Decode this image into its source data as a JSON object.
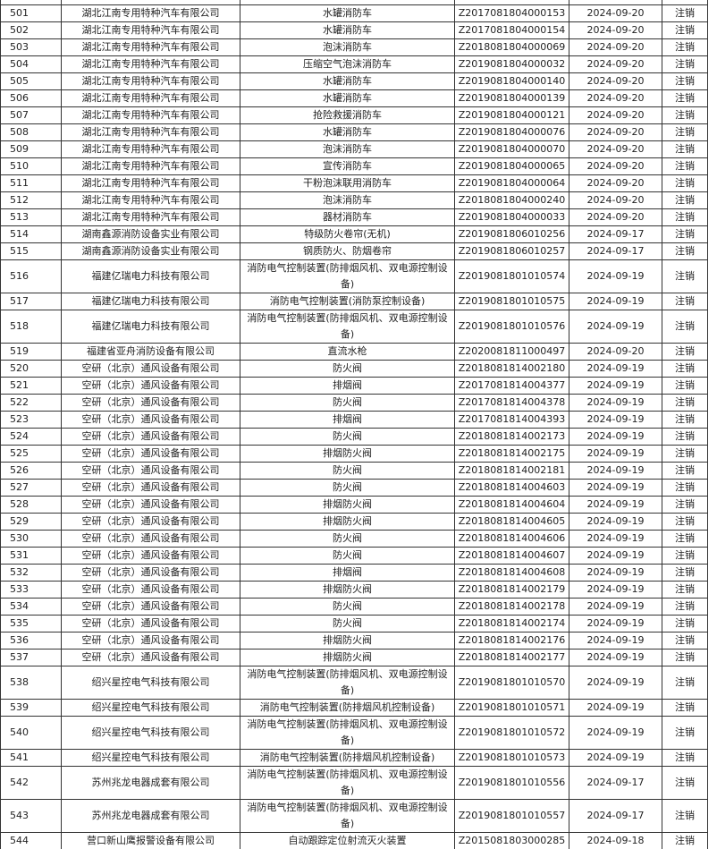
{
  "table": {
    "rows": [
      [
        "501",
        "湖北江南专用特种汽车有限公司",
        "水罐消防车",
        "Z2017081804000153",
        "2024-09-20",
        "注销"
      ],
      [
        "502",
        "湖北江南专用特种汽车有限公司",
        "水罐消防车",
        "Z2017081804000154",
        "2024-09-20",
        "注销"
      ],
      [
        "503",
        "湖北江南专用特种汽车有限公司",
        "泡沫消防车",
        "Z2018081804000069",
        "2024-09-20",
        "注销"
      ],
      [
        "504",
        "湖北江南专用特种汽车有限公司",
        "压缩空气泡沫消防车",
        "Z2019081804000032",
        "2024-09-20",
        "注销"
      ],
      [
        "505",
        "湖北江南专用特种汽车有限公司",
        "水罐消防车",
        "Z2019081804000140",
        "2024-09-20",
        "注销"
      ],
      [
        "506",
        "湖北江南专用特种汽车有限公司",
        "水罐消防车",
        "Z2019081804000139",
        "2024-09-20",
        "注销"
      ],
      [
        "507",
        "湖北江南专用特种汽车有限公司",
        "抢险救援消防车",
        "Z2019081804000121",
        "2024-09-20",
        "注销"
      ],
      [
        "508",
        "湖北江南专用特种汽车有限公司",
        "水罐消防车",
        "Z2019081804000076",
        "2024-09-20",
        "注销"
      ],
      [
        "509",
        "湖北江南专用特种汽车有限公司",
        "泡沫消防车",
        "Z2019081804000070",
        "2024-09-20",
        "注销"
      ],
      [
        "510",
        "湖北江南专用特种汽车有限公司",
        "宣传消防车",
        "Z2019081804000065",
        "2024-09-20",
        "注销"
      ],
      [
        "511",
        "湖北江南专用特种汽车有限公司",
        "干粉泡沫联用消防车",
        "Z2019081804000064",
        "2024-09-20",
        "注销"
      ],
      [
        "512",
        "湖北江南专用特种汽车有限公司",
        "泡沫消防车",
        "Z2018081804000240",
        "2024-09-20",
        "注销"
      ],
      [
        "513",
        "湖北江南专用特种汽车有限公司",
        "器材消防车",
        "Z2019081804000033",
        "2024-09-20",
        "注销"
      ],
      [
        "514",
        "湖南鑫源消防设备实业有限公司",
        "特级防火卷帘(无机)",
        "Z2019081806010256",
        "2024-09-17",
        "注销"
      ],
      [
        "515",
        "湖南鑫源消防设备实业有限公司",
        "钢质防火、防烟卷帘",
        "Z2019081806010257",
        "2024-09-17",
        "注销"
      ],
      [
        "516",
        "福建亿瑞电力科技有限公司",
        "消防电气控制装置(防排烟风机、双电源控制设备)",
        "Z2019081801010574",
        "2024-09-19",
        "注销"
      ],
      [
        "517",
        "福建亿瑞电力科技有限公司",
        "消防电气控制装置(消防泵控制设备)",
        "Z2019081801010575",
        "2024-09-19",
        "注销"
      ],
      [
        "518",
        "福建亿瑞电力科技有限公司",
        "消防电气控制装置(防排烟风机、双电源控制设备)",
        "Z2019081801010576",
        "2024-09-19",
        "注销"
      ],
      [
        "519",
        "福建省亚舟消防设备有限公司",
        "直流水枪",
        "Z2020081811000497",
        "2024-09-20",
        "注销"
      ],
      [
        "520",
        "空研（北京）通风设备有限公司",
        "防火阀",
        "Z2018081814002180",
        "2024-09-19",
        "注销"
      ],
      [
        "521",
        "空研（北京）通风设备有限公司",
        "排烟阀",
        "Z2017081814004377",
        "2024-09-19",
        "注销"
      ],
      [
        "522",
        "空研（北京）通风设备有限公司",
        "防火阀",
        "Z2017081814004378",
        "2024-09-19",
        "注销"
      ],
      [
        "523",
        "空研（北京）通风设备有限公司",
        "排烟阀",
        "Z2017081814004393",
        "2024-09-19",
        "注销"
      ],
      [
        "524",
        "空研（北京）通风设备有限公司",
        "防火阀",
        "Z2018081814002173",
        "2024-09-19",
        "注销"
      ],
      [
        "525",
        "空研（北京）通风设备有限公司",
        "排烟防火阀",
        "Z2018081814002175",
        "2024-09-19",
        "注销"
      ],
      [
        "526",
        "空研（北京）通风设备有限公司",
        "防火阀",
        "Z2018081814002181",
        "2024-09-19",
        "注销"
      ],
      [
        "527",
        "空研（北京）通风设备有限公司",
        "防火阀",
        "Z2018081814004603",
        "2024-09-19",
        "注销"
      ],
      [
        "528",
        "空研（北京）通风设备有限公司",
        "排烟防火阀",
        "Z2018081814004604",
        "2024-09-19",
        "注销"
      ],
      [
        "529",
        "空研（北京）通风设备有限公司",
        "排烟防火阀",
        "Z2018081814004605",
        "2024-09-19",
        "注销"
      ],
      [
        "530",
        "空研（北京）通风设备有限公司",
        "防火阀",
        "Z2018081814004606",
        "2024-09-19",
        "注销"
      ],
      [
        "531",
        "空研（北京）通风设备有限公司",
        "防火阀",
        "Z2018081814004607",
        "2024-09-19",
        "注销"
      ],
      [
        "532",
        "空研（北京）通风设备有限公司",
        "排烟阀",
        "Z2018081814004608",
        "2024-09-19",
        "注销"
      ],
      [
        "533",
        "空研（北京）通风设备有限公司",
        "排烟防火阀",
        "Z2018081814002179",
        "2024-09-19",
        "注销"
      ],
      [
        "534",
        "空研（北京）通风设备有限公司",
        "防火阀",
        "Z2018081814002178",
        "2024-09-19",
        "注销"
      ],
      [
        "535",
        "空研（北京）通风设备有限公司",
        "防火阀",
        "Z2018081814002174",
        "2024-09-19",
        "注销"
      ],
      [
        "536",
        "空研（北京）通风设备有限公司",
        "排烟防火阀",
        "Z2018081814002176",
        "2024-09-19",
        "注销"
      ],
      [
        "537",
        "空研（北京）通风设备有限公司",
        "排烟防火阀",
        "Z2018081814002177",
        "2024-09-19",
        "注销"
      ],
      [
        "538",
        "绍兴星控电气科技有限公司",
        "消防电气控制装置(防排烟风机、双电源控制设备)",
        "Z2019081801010570",
        "2024-09-19",
        "注销"
      ],
      [
        "539",
        "绍兴星控电气科技有限公司",
        "消防电气控制装置(防排烟风机控制设备)",
        "Z2019081801010571",
        "2024-09-19",
        "注销"
      ],
      [
        "540",
        "绍兴星控电气科技有限公司",
        "消防电气控制装置(防排烟风机、双电源控制设备)",
        "Z2019081801010572",
        "2024-09-19",
        "注销"
      ],
      [
        "541",
        "绍兴星控电气科技有限公司",
        "消防电气控制装置(防排烟风机控制设备)",
        "Z2019081801010573",
        "2024-09-19",
        "注销"
      ],
      [
        "542",
        "苏州兆龙电器成套有限公司",
        "消防电气控制装置(防排烟风机、双电源控制设备)",
        "Z2019081801010556",
        "2024-09-17",
        "注销"
      ],
      [
        "543",
        "苏州兆龙电器成套有限公司",
        "消防电气控制装置(防排烟风机、双电源控制设备)",
        "Z2019081801010557",
        "2024-09-17",
        "注销"
      ],
      [
        "544",
        "营口新山鹰报警设备有限公司",
        "自动跟踪定位射流灭火装置",
        "Z2015081803000285",
        "2024-09-18",
        "注销"
      ]
    ]
  }
}
